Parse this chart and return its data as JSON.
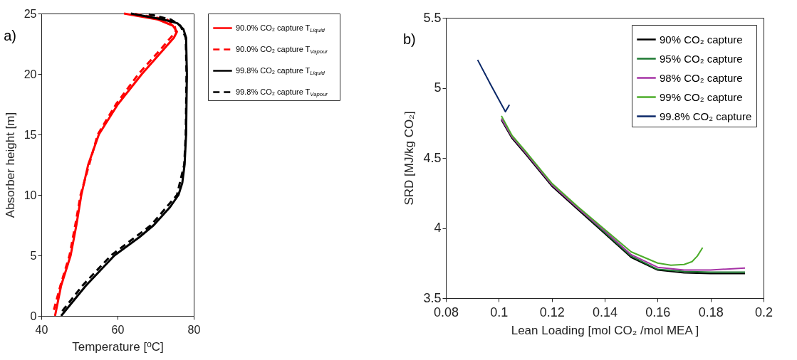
{
  "chart_data": [
    {
      "type": "line",
      "title": "a)",
      "xlabel": "Temperature [$^{o}$C]",
      "ylabel": "Absorber height [m]",
      "xlim": [
        40,
        80
      ],
      "xticks": [
        40,
        60,
        80
      ],
      "ylim": [
        0,
        25
      ],
      "yticks": [
        0,
        5,
        10,
        15,
        20,
        25
      ],
      "grid": false,
      "legend": "right",
      "series": [
        {
          "name": "90.0% CO₂ capture T$_{Liquid}$",
          "color": "#ff0000",
          "line_style": "solid",
          "x": [
            43.6,
            45.2,
            47.7,
            49.2,
            50.5,
            52.3,
            55.1,
            60.1,
            66.4,
            72.0,
            74.8,
            75.6,
            74.5,
            70.7,
            61.7
          ],
          "values": [
            0,
            2.5,
            5,
            7.5,
            10,
            12.5,
            15,
            17.5,
            20,
            22,
            23,
            23.5,
            24,
            24.5,
            25
          ]
        },
        {
          "name": "90.0% CO₂ capture T$_{Vapour}$",
          "color": "#ff0000",
          "line_style": "dashed",
          "x": [
            43.3,
            45.0,
            47.4,
            48.9,
            50.3,
            54.8,
            59.6,
            65.5,
            71.2,
            75.3,
            75.0,
            73.0,
            64.0
          ],
          "values": [
            0.5,
            2.5,
            5,
            7.5,
            10,
            15,
            17.5,
            20,
            22,
            23.5,
            24,
            24.5,
            25
          ]
        },
        {
          "name": "99.8% CO₂ capture T$_{Liquid}$",
          "color": "#000000",
          "line_style": "solid",
          "x": [
            45.2,
            51.7,
            59.2,
            65.7,
            69.5,
            73.8,
            76.0,
            77.0,
            77.6,
            78.0,
            78.2,
            78.0,
            77.3,
            75.7,
            72.0,
            63.5
          ],
          "values": [
            0,
            2.5,
            5,
            6.5,
            7.5,
            9,
            10,
            11,
            12.5,
            15,
            20,
            23,
            23.7,
            24.2,
            24.5,
            25
          ]
        },
        {
          "name": "99.8% CO₂ capture T$_{Vapour}$",
          "color": "#000000",
          "line_style": "dashed",
          "x": [
            45.5,
            50.8,
            58.3,
            68.8,
            75.6,
            77.5,
            77.9,
            78.1,
            77.9,
            76.5,
            74.0,
            67.5
          ],
          "values": [
            0.4,
            2.5,
            5,
            7.5,
            10,
            12.5,
            15,
            20,
            23,
            24,
            24.5,
            25
          ]
        }
      ]
    },
    {
      "type": "line",
      "title": "b)",
      "xlabel": "Lean Loading  [mol CO₂ /mol MEA ]",
      "ylabel": "SRD [MJ/kg CO₂]",
      "xlim": [
        0.08,
        0.2
      ],
      "xticks": [
        0.08,
        0.1,
        0.12,
        0.14,
        0.16,
        0.18,
        0.2
      ],
      "ylim": [
        3.5,
        5.5
      ],
      "yticks": [
        3.5,
        4,
        4.5,
        5,
        5.5
      ],
      "grid": false,
      "legend": "top right",
      "series": [
        {
          "name": "90% CO₂ capture",
          "color": "#000000",
          "x": [
            0.101,
            0.105,
            0.11,
            0.12,
            0.13,
            0.14,
            0.15,
            0.16,
            0.17,
            0.18,
            0.193
          ],
          "values": [
            4.77,
            4.64,
            4.53,
            4.3,
            4.13,
            3.96,
            3.79,
            3.7,
            3.68,
            3.675,
            3.675
          ]
        },
        {
          "name": "95% CO₂ capture",
          "color": "#1e7a32",
          "x": [
            0.101,
            0.105,
            0.11,
            0.12,
            0.13,
            0.14,
            0.15,
            0.16,
            0.17,
            0.18,
            0.193
          ],
          "values": [
            4.78,
            4.65,
            4.54,
            4.31,
            4.14,
            3.97,
            3.8,
            3.705,
            3.69,
            3.685,
            3.685
          ]
        },
        {
          "name": "98% CO₂ capture",
          "color": "#a633a6",
          "x": [
            0.101,
            0.105,
            0.11,
            0.12,
            0.13,
            0.14,
            0.15,
            0.16,
            0.17,
            0.18,
            0.193
          ],
          "values": [
            4.78,
            4.65,
            4.54,
            4.31,
            4.14,
            3.98,
            3.81,
            3.72,
            3.7,
            3.7,
            3.715
          ]
        },
        {
          "name": "99% CO₂ capture",
          "color": "#4cad2a",
          "x": [
            0.101,
            0.105,
            0.11,
            0.12,
            0.13,
            0.14,
            0.15,
            0.16,
            0.165,
            0.17,
            0.173,
            0.175,
            0.177
          ],
          "values": [
            4.8,
            4.66,
            4.55,
            4.32,
            4.15,
            3.99,
            3.83,
            3.75,
            3.735,
            3.74,
            3.76,
            3.8,
            3.86
          ]
        },
        {
          "name": "99.8% CO₂ capture",
          "color": "#0b2868",
          "x": [
            0.092,
            0.097,
            0.1025,
            0.104
          ],
          "values": [
            5.2,
            5.02,
            4.83,
            4.88
          ]
        }
      ]
    }
  ]
}
